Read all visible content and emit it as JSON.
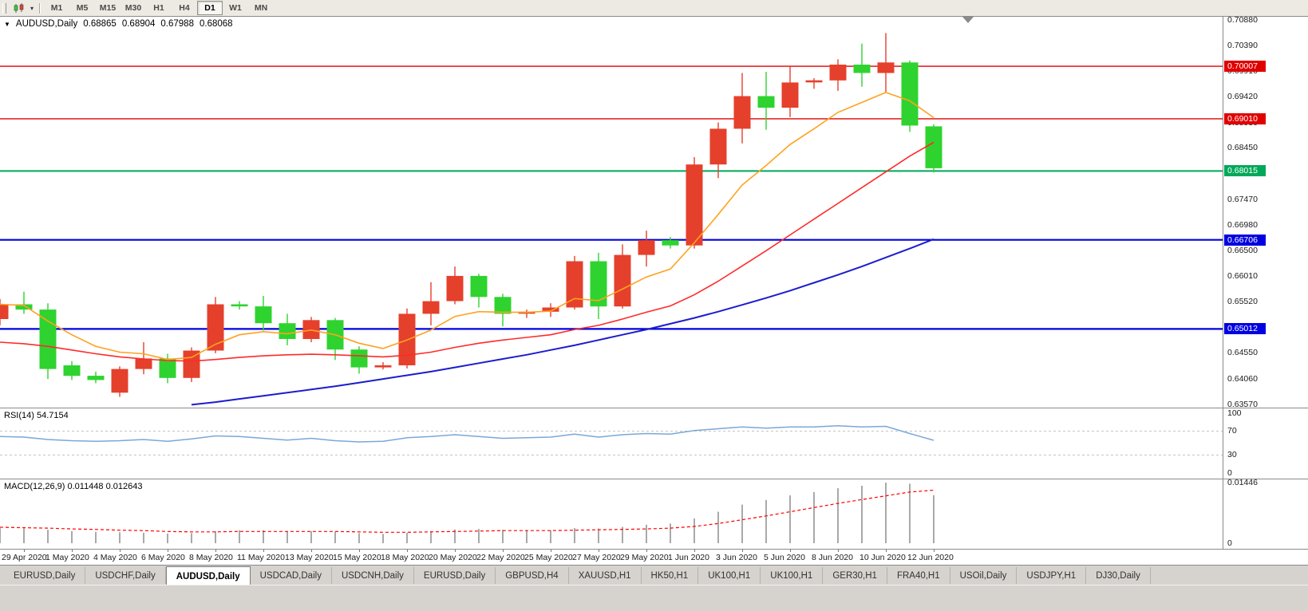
{
  "toolbar": {
    "timeframes": [
      "M1",
      "M5",
      "M15",
      "M30",
      "H1",
      "H4",
      "D1",
      "W1",
      "MN"
    ],
    "active": "D1"
  },
  "chart_title": {
    "symbol": "AUDUSD,Daily",
    "open": "0.68865",
    "high": "0.68904",
    "low": "0.67988",
    "close": "0.68068"
  },
  "chart_data": {
    "type": "candlestick",
    "symbol": "AUDUSD",
    "period": "Daily",
    "colors": {
      "bull": "#e5402c",
      "bear": "#2fd32f",
      "ma_fast": "#ffa21f",
      "ma_mid": "#ff2a2a",
      "ma_slow": "#1c1ccd",
      "rsi_line": "#7aa8d6",
      "level_dash": "#c4c4c4",
      "macd_bar": "#a9a9a9",
      "macd_signal": "#ff0000",
      "shift_marker": "#8a8a8a"
    },
    "price_axis": {
      "min": 0.635,
      "max": 0.7095,
      "labels": [
        {
          "text": "0.70880",
          "value": 0.7088
        },
        {
          "text": "0.70390",
          "value": 0.7039
        },
        {
          "text": "0.69910",
          "value": 0.6991
        },
        {
          "text": "0.69420",
          "value": 0.6942
        },
        {
          "text": "0.68930",
          "value": 0.6893
        },
        {
          "text": "0.68450",
          "value": 0.6845
        },
        {
          "text": "0.67960",
          "value": 0.6796
        },
        {
          "text": "0.67470",
          "value": 0.6747
        },
        {
          "text": "0.66980",
          "value": 0.6698
        },
        {
          "text": "0.66500",
          "value": 0.665
        },
        {
          "text": "0.66010",
          "value": 0.6601
        },
        {
          "text": "0.65520",
          "value": 0.6552
        },
        {
          "text": "0.65030",
          "value": 0.6503
        },
        {
          "text": "0.64550",
          "value": 0.6455
        },
        {
          "text": "0.64060",
          "value": 0.6406
        },
        {
          "text": "0.63570",
          "value": 0.6357
        }
      ]
    },
    "hlines": [
      {
        "label": "0.70007",
        "value": 0.70007,
        "color": "#e00000",
        "weight": 1.4
      },
      {
        "label": "0.69010",
        "value": 0.6901,
        "color": "#e00000",
        "weight": 1.4
      },
      {
        "label": "0.68015",
        "value": 0.68015,
        "color": "#00a859",
        "weight": 2
      },
      {
        "label": "0.66706",
        "value": 0.66706,
        "color": "#0000e0",
        "weight": 2.2
      },
      {
        "label": "0.65012",
        "value": 0.65012,
        "color": "#0000e0",
        "weight": 2.2
      }
    ],
    "candles": [
      {
        "t": "28 Apr",
        "o": 0.652,
        "h": 0.6558,
        "l": 0.6508,
        "c": 0.6548
      },
      {
        "t": "29 Apr",
        "o": 0.6548,
        "h": 0.6572,
        "l": 0.653,
        "c": 0.6538
      },
      {
        "t": "30 Apr",
        "o": 0.6538,
        "h": 0.655,
        "l": 0.6406,
        "c": 0.6425
      },
      {
        "t": "1 May",
        "o": 0.6432,
        "h": 0.644,
        "l": 0.6404,
        "c": 0.6412
      },
      {
        "t": "3 May",
        "o": 0.6412,
        "h": 0.642,
        "l": 0.6398,
        "c": 0.6404
      },
      {
        "t": "4 May",
        "o": 0.638,
        "h": 0.643,
        "l": 0.6372,
        "c": 0.6425
      },
      {
        "t": "5 May",
        "o": 0.6425,
        "h": 0.6476,
        "l": 0.6415,
        "c": 0.6445
      },
      {
        "t": "6 May",
        "o": 0.6445,
        "h": 0.6454,
        "l": 0.6398,
        "c": 0.6408
      },
      {
        "t": "7 May",
        "o": 0.6408,
        "h": 0.6466,
        "l": 0.64,
        "c": 0.646
      },
      {
        "t": "8 May",
        "o": 0.646,
        "h": 0.6562,
        "l": 0.6455,
        "c": 0.6548
      },
      {
        "t": "10 May",
        "o": 0.6548,
        "h": 0.6554,
        "l": 0.6538,
        "c": 0.6544
      },
      {
        "t": "11 May",
        "o": 0.6544,
        "h": 0.6564,
        "l": 0.6498,
        "c": 0.6512
      },
      {
        "t": "12 May",
        "o": 0.6512,
        "h": 0.653,
        "l": 0.647,
        "c": 0.6482
      },
      {
        "t": "13 May",
        "o": 0.6482,
        "h": 0.6524,
        "l": 0.6476,
        "c": 0.6518
      },
      {
        "t": "14 May",
        "o": 0.6518,
        "h": 0.6522,
        "l": 0.6442,
        "c": 0.6462
      },
      {
        "t": "15 May",
        "o": 0.6462,
        "h": 0.6468,
        "l": 0.6416,
        "c": 0.6428
      },
      {
        "t": "17 May",
        "o": 0.6428,
        "h": 0.6438,
        "l": 0.6424,
        "c": 0.6432
      },
      {
        "t": "18 May",
        "o": 0.6432,
        "h": 0.654,
        "l": 0.6426,
        "c": 0.653
      },
      {
        "t": "19 May",
        "o": 0.653,
        "h": 0.659,
        "l": 0.6508,
        "c": 0.6554
      },
      {
        "t": "20 May",
        "o": 0.6554,
        "h": 0.662,
        "l": 0.6548,
        "c": 0.6602
      },
      {
        "t": "21 May",
        "o": 0.6602,
        "h": 0.6606,
        "l": 0.6542,
        "c": 0.6562
      },
      {
        "t": "22 May",
        "o": 0.6562,
        "h": 0.6568,
        "l": 0.6506,
        "c": 0.653
      },
      {
        "t": "24 May",
        "o": 0.653,
        "h": 0.6538,
        "l": 0.6522,
        "c": 0.6534
      },
      {
        "t": "25 May",
        "o": 0.6534,
        "h": 0.655,
        "l": 0.6524,
        "c": 0.6542
      },
      {
        "t": "26 May",
        "o": 0.6542,
        "h": 0.664,
        "l": 0.6538,
        "c": 0.663
      },
      {
        "t": "27 May",
        "o": 0.663,
        "h": 0.6646,
        "l": 0.652,
        "c": 0.6544
      },
      {
        "t": "28 May",
        "o": 0.6544,
        "h": 0.6662,
        "l": 0.654,
        "c": 0.6642
      },
      {
        "t": "29 May",
        "o": 0.6642,
        "h": 0.6688,
        "l": 0.662,
        "c": 0.667
      },
      {
        "t": "31 May",
        "o": 0.667,
        "h": 0.6676,
        "l": 0.6654,
        "c": 0.666
      },
      {
        "t": "1 Jun",
        "o": 0.666,
        "h": 0.6828,
        "l": 0.6654,
        "c": 0.6814
      },
      {
        "t": "2 Jun",
        "o": 0.6814,
        "h": 0.6894,
        "l": 0.6788,
        "c": 0.6882
      },
      {
        "t": "3 Jun",
        "o": 0.6882,
        "h": 0.6988,
        "l": 0.6854,
        "c": 0.6944
      },
      {
        "t": "4 Jun",
        "o": 0.6944,
        "h": 0.699,
        "l": 0.688,
        "c": 0.6922
      },
      {
        "t": "5 Jun",
        "o": 0.6922,
        "h": 0.7,
        "l": 0.6904,
        "c": 0.697
      },
      {
        "t": "7 Jun",
        "o": 0.697,
        "h": 0.6978,
        "l": 0.6958,
        "c": 0.6974
      },
      {
        "t": "8 Jun",
        "o": 0.6974,
        "h": 0.7014,
        "l": 0.6954,
        "c": 0.7004
      },
      {
        "t": "9 Jun",
        "o": 0.7004,
        "h": 0.7044,
        "l": 0.6962,
        "c": 0.6988
      },
      {
        "t": "10 Jun",
        "o": 0.6988,
        "h": 0.7064,
        "l": 0.6952,
        "c": 0.7008
      },
      {
        "t": "11 Jun",
        "o": 0.7008,
        "h": 0.7012,
        "l": 0.6876,
        "c": 0.6888
      },
      {
        "t": "12 Jun",
        "o": 0.68865,
        "h": 0.68904,
        "l": 0.67988,
        "c": 0.68068
      }
    ],
    "ma_fast": [
      0.6548,
      0.6546,
      0.6516,
      0.649,
      0.6468,
      0.6457,
      0.6454,
      0.6443,
      0.6447,
      0.6472,
      0.649,
      0.6496,
      0.6492,
      0.6499,
      0.649,
      0.6474,
      0.6464,
      0.648,
      0.6499,
      0.6525,
      0.6534,
      0.6533,
      0.6533,
      0.6535,
      0.6559,
      0.6555,
      0.6577,
      0.66,
      0.6615,
      0.6665,
      0.6719,
      0.6775,
      0.6812,
      0.6852,
      0.6882,
      0.6913,
      0.6932,
      0.6951,
      0.6935,
      0.6903
    ],
    "ma_mid": [
      0.6476,
      0.6473,
      0.6468,
      0.6461,
      0.6454,
      0.6448,
      0.6444,
      0.6441,
      0.644,
      0.6443,
      0.6447,
      0.645,
      0.6452,
      0.6453,
      0.6452,
      0.645,
      0.6448,
      0.6451,
      0.6457,
      0.6466,
      0.6474,
      0.648,
      0.6485,
      0.649,
      0.65,
      0.6508,
      0.652,
      0.6533,
      0.6545,
      0.6566,
      0.6592,
      0.6621,
      0.665,
      0.668,
      0.671,
      0.674,
      0.677,
      0.68,
      0.683,
      0.6856
    ],
    "ma_slow": [
      null,
      null,
      null,
      null,
      null,
      null,
      null,
      null,
      0.6357,
      0.6362,
      0.6368,
      0.6374,
      0.638,
      0.6386,
      0.6392,
      0.6399,
      0.6406,
      0.6413,
      0.642,
      0.6428,
      0.6436,
      0.6444,
      0.6452,
      0.6461,
      0.647,
      0.648,
      0.649,
      0.65,
      0.6511,
      0.6522,
      0.6534,
      0.6547,
      0.656,
      0.6574,
      0.6589,
      0.6604,
      0.662,
      0.6637,
      0.6654,
      0.6672
    ],
    "dates": [
      "29 Apr 2020",
      "1 May 2020",
      "4 May 2020",
      "6 May 2020",
      "8 May 2020",
      "11 May 2020",
      "13 May 2020",
      "15 May 2020",
      "18 May 2020",
      "20 May 2020",
      "22 May 2020",
      "25 May 2020",
      "27 May 2020",
      "29 May 2020",
      "1 Jun 2020",
      "3 Jun 2020",
      "5 Jun 2020",
      "8 Jun 2020",
      "10 Jun 2020",
      "12 Jun 2020"
    ],
    "indicators": {
      "rsi": {
        "label": "RSI(14) 54.7154",
        "range": [
          0,
          100
        ],
        "levels": [
          70,
          30
        ],
        "axis_labels": [
          {
            "text": "100",
            "value": 100
          },
          {
            "text": "70",
            "value": 70
          },
          {
            "text": "30",
            "value": 30
          },
          {
            "text": "0",
            "value": 0
          }
        ],
        "values": [
          61,
          60,
          56,
          54,
          53,
          54,
          56,
          53,
          57,
          62,
          61,
          58,
          55,
          58,
          54,
          52,
          53,
          59,
          61,
          64,
          61,
          58,
          59,
          60,
          65,
          60,
          64,
          66,
          65,
          71,
          74,
          77,
          75,
          77,
          77,
          79,
          77,
          78,
          66,
          54.7
        ]
      },
      "macd": {
        "label": "MACD(12,26,9) 0.011448 0.012643",
        "range": [
          0,
          0.01446
        ],
        "axis_labels": [
          {
            "text": "0.01446",
            "value": 0.01446
          },
          {
            "text": "0",
            "value": 0
          }
        ],
        "main": [
          0.0036,
          0.0035,
          0.0032,
          0.0029,
          0.0027,
          0.0026,
          0.0025,
          0.0023,
          0.0024,
          0.0029,
          0.0031,
          0.0031,
          0.0029,
          0.0029,
          0.0027,
          0.0024,
          0.0022,
          0.0025,
          0.0029,
          0.0033,
          0.0034,
          0.0032,
          0.0031,
          0.0031,
          0.0036,
          0.0035,
          0.0039,
          0.0044,
          0.0047,
          0.0059,
          0.0075,
          0.0092,
          0.0103,
          0.0114,
          0.0122,
          0.0131,
          0.0137,
          0.01446,
          0.0142,
          0.011448
        ],
        "signal": [
          0.0038,
          0.0037,
          0.0036,
          0.0034,
          0.0033,
          0.0031,
          0.003,
          0.0028,
          0.0027,
          0.0027,
          0.0028,
          0.0028,
          0.0028,
          0.0028,
          0.0028,
          0.0027,
          0.0026,
          0.0026,
          0.0027,
          0.0028,
          0.0029,
          0.003,
          0.003,
          0.003,
          0.0031,
          0.0032,
          0.0033,
          0.0034,
          0.0036,
          0.004,
          0.0047,
          0.0056,
          0.0065,
          0.0075,
          0.0085,
          0.0095,
          0.0104,
          0.0113,
          0.0122,
          0.012643
        ]
      }
    }
  },
  "tabs": {
    "items": [
      "EURUSD,Daily",
      "USDCHF,Daily",
      "AUDUSD,Daily",
      "USDCAD,Daily",
      "USDCNH,Daily",
      "EURUSD,Daily",
      "GBPUSD,H4",
      "XAUUSD,H1",
      "HK50,H1",
      "UK100,H1",
      "UK100,H1",
      "GER30,H1",
      "FRA40,H1",
      "USOil,Daily",
      "USDJPY,H1",
      "DJ30,Daily"
    ],
    "active_index": 2
  }
}
